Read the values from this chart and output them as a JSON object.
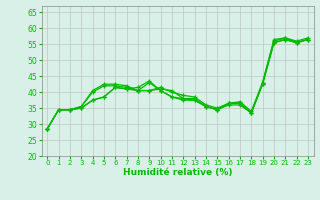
{
  "xlabel": "Humidité relative (%)",
  "background_color": "#d8f0e8",
  "grid_color": "#bbbbbb",
  "line_color": "#00bb00",
  "xlim": [
    -0.5,
    23.5
  ],
  "ylim": [
    20,
    67
  ],
  "yticks": [
    20,
    25,
    30,
    35,
    40,
    45,
    50,
    55,
    60,
    65
  ],
  "xticks": [
    0,
    1,
    2,
    3,
    4,
    5,
    6,
    7,
    8,
    9,
    10,
    11,
    12,
    13,
    14,
    15,
    16,
    17,
    18,
    19,
    20,
    21,
    22,
    23
  ],
  "series": [
    [
      28.5,
      34.5,
      34.5,
      35.0,
      37.5,
      38.5,
      41.5,
      41.0,
      40.5,
      43.0,
      40.5,
      38.5,
      38.0,
      37.5,
      35.5,
      34.5,
      36.5,
      36.5,
      33.5,
      42.5,
      55.5,
      56.5,
      55.5,
      56.5
    ],
    [
      28.5,
      34.5,
      34.5,
      35.5,
      40.0,
      42.0,
      42.0,
      41.5,
      40.5,
      40.5,
      41.0,
      40.5,
      38.0,
      38.0,
      35.5,
      34.5,
      36.0,
      36.0,
      33.5,
      42.5,
      55.5,
      56.5,
      55.5,
      56.5
    ],
    [
      28.5,
      34.5,
      34.5,
      35.5,
      40.5,
      42.5,
      42.5,
      42.0,
      40.5,
      40.5,
      41.5,
      40.0,
      39.0,
      38.5,
      36.0,
      35.0,
      36.5,
      37.0,
      34.0,
      43.0,
      56.5,
      57.0,
      56.0,
      57.0
    ]
  ],
  "series_lower": [
    28.5,
    34.5,
    34.5,
    35.0,
    37.5,
    38.5,
    41.5,
    41.0,
    41.5,
    43.5,
    40.5,
    38.5,
    37.5,
    37.5,
    35.5,
    34.5,
    36.5,
    36.5,
    33.5,
    43.0,
    56.0,
    57.0,
    55.5,
    56.5
  ]
}
